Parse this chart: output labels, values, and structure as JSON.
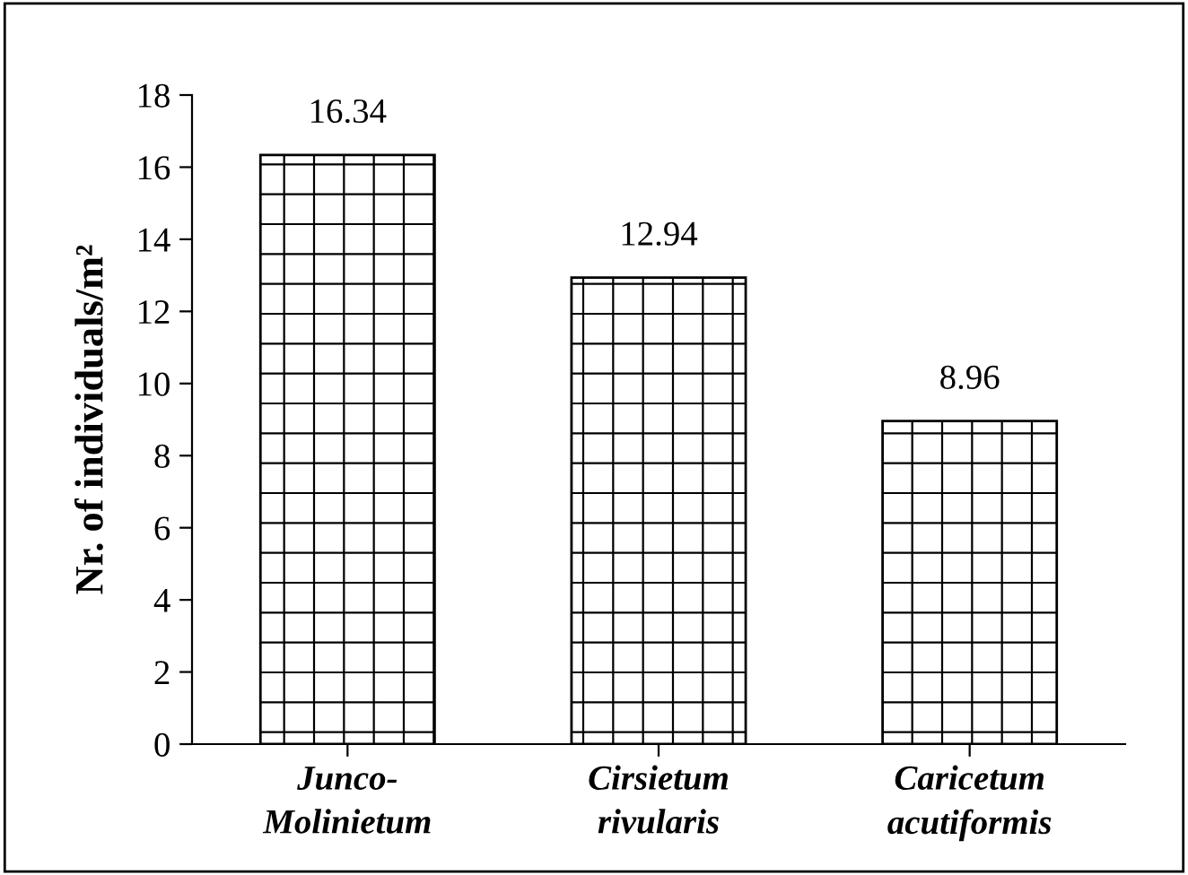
{
  "chart_data": {
    "type": "bar",
    "categories": [
      "Junco-\nMolinietum",
      "Cirsietum\nrivularis",
      "Caricetum\nacutiformis"
    ],
    "values": [
      16.34,
      12.94,
      8.96
    ],
    "color": "#000000",
    "ylabel": "Nr. of individuals/m²",
    "ylim": [
      0,
      18
    ],
    "yticks": [
      0,
      2,
      4,
      6,
      8,
      10,
      12,
      14,
      16,
      18
    ],
    "data_labels": true,
    "grid": false,
    "legend": false
  }
}
